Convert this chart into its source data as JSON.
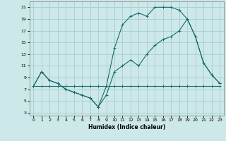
{
  "xlabel": "Humidex (Indice chaleur)",
  "bg_color": "#cde8e8",
  "grid_color": "#a0c8c8",
  "line_color": "#1a6b6b",
  "xlim": [
    -0.5,
    23.5
  ],
  "ylim": [
    2.5,
    22
  ],
  "xticks": [
    0,
    1,
    2,
    3,
    4,
    5,
    6,
    7,
    8,
    9,
    10,
    11,
    12,
    13,
    14,
    15,
    16,
    17,
    18,
    19,
    20,
    21,
    22,
    23
  ],
  "yticks": [
    3,
    5,
    7,
    9,
    11,
    13,
    15,
    17,
    19,
    21
  ],
  "line1_x": [
    0,
    1,
    2,
    3,
    4,
    5,
    6,
    7,
    8,
    9,
    10,
    11,
    12,
    13,
    14,
    15,
    16,
    17,
    18,
    19,
    20,
    21,
    22,
    23
  ],
  "line1_y": [
    7.5,
    7.5,
    7.5,
    7.5,
    7.5,
    7.5,
    7.5,
    7.5,
    7.5,
    7.5,
    7.5,
    7.5,
    7.5,
    7.5,
    7.5,
    7.5,
    7.5,
    7.5,
    7.5,
    7.5,
    7.5,
    7.5,
    7.5,
    7.5
  ],
  "line2_x": [
    0,
    1,
    2,
    3,
    4,
    5,
    6,
    7,
    8,
    9,
    10,
    11,
    12,
    13,
    14,
    15,
    16,
    17,
    18,
    19,
    20,
    21,
    22,
    23
  ],
  "line2_y": [
    7.5,
    10,
    8.5,
    8,
    7,
    6.5,
    6,
    5.5,
    4,
    6,
    10,
    11,
    12,
    11,
    13,
    14.5,
    15.5,
    16,
    17,
    19,
    16,
    11.5,
    9.5,
    8
  ],
  "line3_x": [
    0,
    1,
    2,
    3,
    4,
    5,
    6,
    7,
    8,
    9,
    10,
    11,
    12,
    13,
    14,
    15,
    16,
    17,
    18,
    19,
    20,
    21,
    22,
    23
  ],
  "line3_y": [
    7.5,
    10,
    8.5,
    8,
    7,
    6.5,
    6,
    5.5,
    4,
    7.5,
    14,
    18,
    19.5,
    20,
    19.5,
    21,
    21,
    21,
    20.5,
    19,
    16,
    11.5,
    9.5,
    8
  ]
}
